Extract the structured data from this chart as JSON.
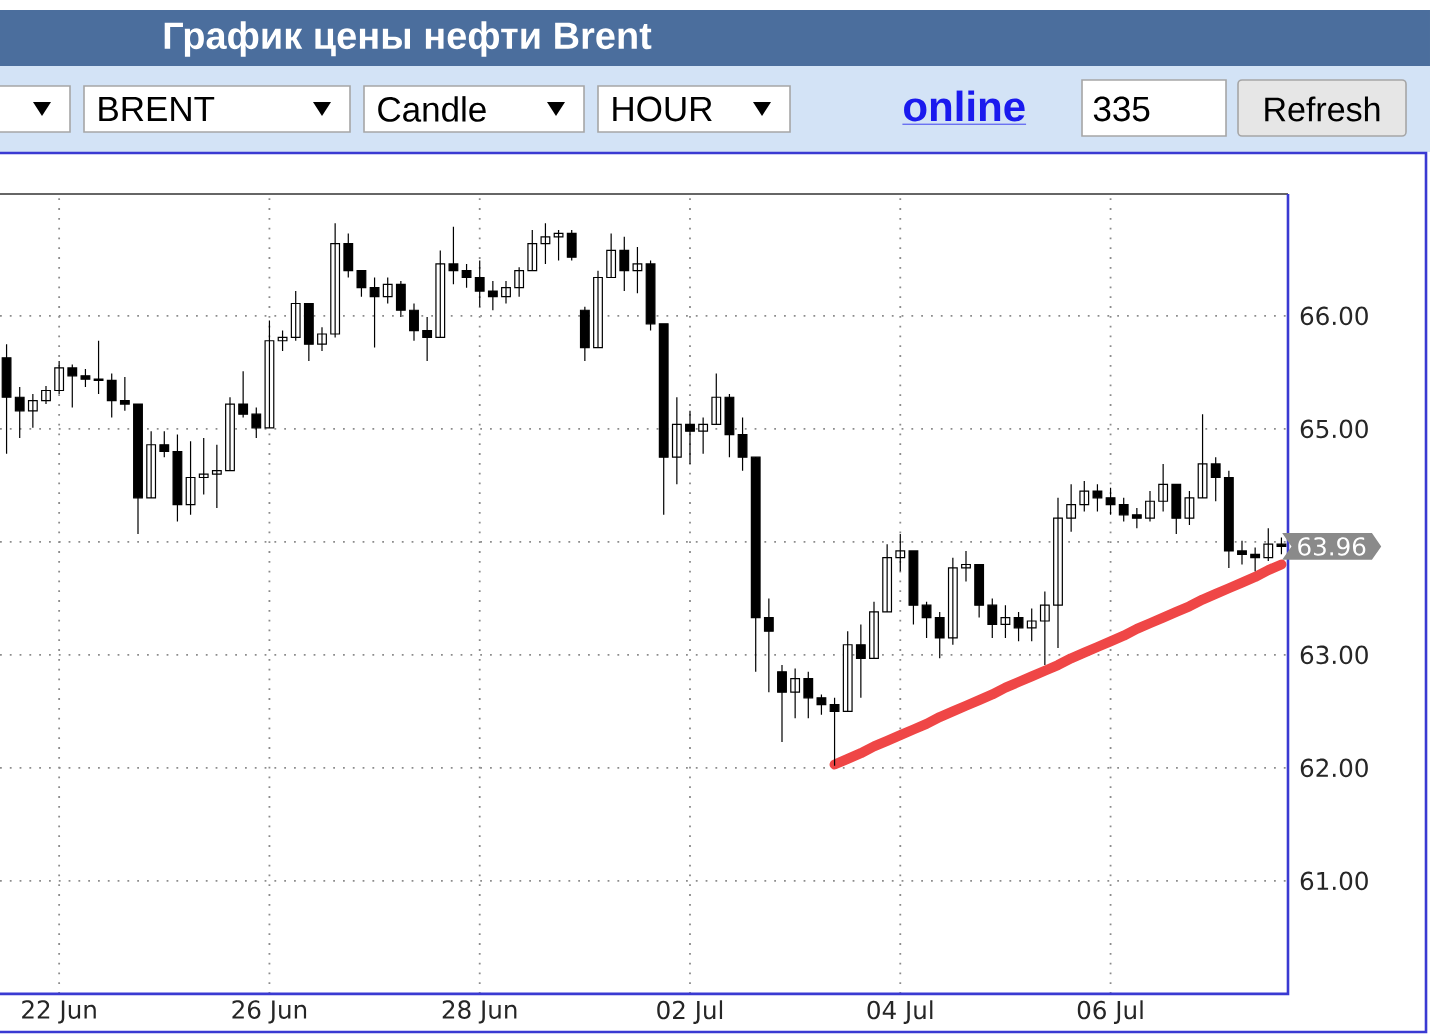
{
  "chart_data": {
    "type": "candlestick",
    "title": "График цены нефти Brent",
    "color": "#000000",
    "categories": [
      null,
      null,
      null,
      null,
      "22 Jun",
      null,
      null,
      null,
      null,
      null,
      null,
      null,
      null,
      null,
      null,
      null,
      null,
      null,
      null,
      null,
      "26 Jun",
      null,
      null,
      null,
      null,
      null,
      null,
      null,
      null,
      null,
      null,
      null,
      null,
      null,
      null,
      null,
      "28 Jun",
      null,
      null,
      null,
      null,
      null,
      null,
      null,
      null,
      null,
      null,
      null,
      null,
      null,
      null,
      null,
      "02 Jul",
      null,
      null,
      null,
      null,
      null,
      null,
      null,
      null,
      null,
      null,
      null,
      null,
      null,
      null,
      null,
      "04 Jul",
      null,
      null,
      null,
      null,
      null,
      null,
      null,
      null,
      null,
      null,
      null,
      null,
      null,
      null,
      null,
      "06 Jul",
      null,
      null,
      null,
      null,
      null,
      null,
      null,
      null,
      null,
      null,
      null,
      null,
      null
    ],
    "ohlc": [
      [
        65.63,
        65.75,
        64.78,
        65.28
      ],
      [
        65.28,
        65.37,
        64.92,
        65.16
      ],
      [
        65.16,
        65.31,
        65.01,
        65.25
      ],
      [
        65.25,
        65.38,
        65.22,
        65.34
      ],
      [
        65.34,
        65.6,
        65.31,
        65.54
      ],
      [
        65.54,
        65.57,
        65.19,
        65.47
      ],
      [
        65.47,
        65.53,
        65.37,
        65.44
      ],
      [
        65.44,
        65.78,
        65.31,
        65.43
      ],
      [
        65.43,
        65.49,
        65.1,
        65.25
      ],
      [
        65.25,
        65.46,
        65.16,
        65.22
      ],
      [
        65.22,
        65.22,
        64.07,
        64.39
      ],
      [
        64.39,
        64.98,
        64.39,
        64.86
      ],
      [
        64.86,
        64.98,
        64.75,
        64.8
      ],
      [
        64.8,
        64.95,
        64.18,
        64.33
      ],
      [
        64.33,
        64.89,
        64.24,
        64.57
      ],
      [
        64.57,
        64.92,
        64.42,
        64.6
      ],
      [
        64.6,
        64.86,
        64.3,
        64.63
      ],
      [
        64.63,
        65.28,
        64.63,
        65.22
      ],
      [
        65.22,
        65.51,
        65.1,
        65.13
      ],
      [
        65.13,
        65.19,
        64.92,
        65.01
      ],
      [
        65.01,
        65.96,
        65.01,
        65.78
      ],
      [
        65.78,
        65.87,
        65.69,
        65.81
      ],
      [
        65.81,
        66.22,
        65.78,
        66.11
      ],
      [
        66.11,
        66.11,
        65.6,
        65.75
      ],
      [
        65.75,
        65.9,
        65.69,
        65.84
      ],
      [
        65.84,
        66.82,
        65.81,
        66.64
      ],
      [
        66.64,
        66.73,
        66.34,
        66.4
      ],
      [
        66.4,
        66.4,
        66.17,
        66.25
      ],
      [
        66.25,
        66.34,
        65.72,
        66.17
      ],
      [
        66.17,
        66.34,
        66.11,
        66.28
      ],
      [
        66.28,
        66.31,
        65.99,
        66.05
      ],
      [
        66.05,
        66.11,
        65.78,
        65.87
      ],
      [
        65.87,
        65.99,
        65.6,
        65.81
      ],
      [
        65.81,
        66.58,
        65.81,
        66.46
      ],
      [
        66.46,
        66.79,
        66.28,
        66.4
      ],
      [
        66.4,
        66.46,
        66.25,
        66.34
      ],
      [
        66.34,
        66.49,
        66.08,
        66.22
      ],
      [
        66.22,
        66.31,
        66.05,
        66.17
      ],
      [
        66.17,
        66.31,
        66.11,
        66.25
      ],
      [
        66.25,
        66.43,
        66.17,
        66.4
      ],
      [
        66.4,
        66.76,
        66.4,
        66.64
      ],
      [
        66.64,
        66.82,
        66.46,
        66.7
      ],
      [
        66.7,
        66.76,
        66.49,
        66.73
      ],
      [
        66.73,
        66.76,
        66.49,
        66.52
      ],
      [
        66.05,
        66.08,
        65.6,
        65.72
      ],
      [
        65.72,
        66.4,
        65.72,
        66.34
      ],
      [
        66.34,
        66.73,
        66.34,
        66.58
      ],
      [
        66.58,
        66.7,
        66.22,
        66.4
      ],
      [
        66.4,
        66.61,
        66.2,
        66.46
      ],
      [
        66.46,
        66.49,
        65.87,
        65.93
      ],
      [
        65.93,
        65.93,
        64.24,
        64.75
      ],
      [
        64.75,
        65.28,
        64.51,
        65.04
      ],
      [
        65.04,
        65.16,
        64.69,
        64.98
      ],
      [
        64.98,
        65.1,
        64.78,
        65.04
      ],
      [
        65.04,
        65.49,
        65.04,
        65.28
      ],
      [
        65.28,
        65.31,
        64.75,
        64.95
      ],
      [
        64.95,
        65.1,
        64.63,
        64.75
      ],
      [
        64.75,
        64.75,
        62.85,
        63.33
      ],
      [
        63.33,
        63.5,
        62.67,
        63.21
      ],
      [
        62.85,
        62.91,
        62.23,
        62.67
      ],
      [
        62.67,
        62.88,
        62.44,
        62.79
      ],
      [
        62.79,
        62.85,
        62.44,
        62.62
      ],
      [
        62.62,
        62.65,
        62.47,
        62.56
      ],
      [
        62.56,
        62.62,
        62.02,
        62.5
      ],
      [
        62.5,
        63.21,
        62.5,
        63.09
      ],
      [
        63.09,
        63.27,
        62.62,
        62.97
      ],
      [
        62.97,
        63.47,
        62.97,
        63.38
      ],
      [
        63.38,
        63.98,
        63.38,
        63.86
      ],
      [
        63.86,
        64.07,
        63.74,
        63.92
      ],
      [
        63.92,
        63.92,
        63.27,
        63.44
      ],
      [
        63.44,
        63.47,
        63.15,
        63.33
      ],
      [
        63.33,
        63.38,
        62.97,
        63.15
      ],
      [
        63.15,
        63.86,
        63.09,
        63.77
      ],
      [
        63.77,
        63.92,
        63.65,
        63.8
      ],
      [
        63.8,
        63.8,
        63.33,
        63.44
      ],
      [
        63.44,
        63.5,
        63.15,
        63.27
      ],
      [
        63.27,
        63.44,
        63.15,
        63.33
      ],
      [
        63.33,
        63.38,
        63.12,
        63.24
      ],
      [
        63.24,
        63.41,
        63.12,
        63.3
      ],
      [
        63.3,
        63.56,
        62.91,
        63.44
      ],
      [
        63.44,
        64.39,
        63.06,
        64.21
      ],
      [
        64.21,
        64.51,
        64.09,
        64.33
      ],
      [
        64.33,
        64.54,
        64.27,
        64.45
      ],
      [
        64.45,
        64.51,
        64.27,
        64.39
      ],
      [
        64.39,
        64.48,
        64.24,
        64.33
      ],
      [
        64.33,
        64.39,
        64.18,
        64.24
      ],
      [
        64.24,
        64.3,
        64.12,
        64.21
      ],
      [
        64.21,
        64.45,
        64.18,
        64.36
      ],
      [
        64.36,
        64.69,
        64.27,
        64.51
      ],
      [
        64.51,
        64.51,
        64.07,
        64.21
      ],
      [
        64.21,
        64.45,
        64.15,
        64.39
      ],
      [
        64.39,
        65.13,
        64.39,
        64.69
      ],
      [
        64.69,
        64.75,
        64.36,
        64.57
      ],
      [
        64.57,
        64.63,
        63.77,
        63.92
      ],
      [
        63.92,
        64.01,
        63.8,
        63.89
      ],
      [
        63.89,
        63.95,
        63.74,
        63.86
      ],
      [
        63.86,
        64.12,
        63.83,
        63.98
      ],
      [
        63.98,
        64.04,
        63.89,
        63.96
      ]
    ],
    "series": [
      {
        "type": "line",
        "color": "#ef4646",
        "values": [
          null,
          null,
          null,
          null,
          null,
          null,
          null,
          null,
          null,
          null,
          null,
          null,
          null,
          null,
          null,
          null,
          null,
          null,
          null,
          null,
          null,
          null,
          null,
          null,
          null,
          null,
          null,
          null,
          null,
          null,
          null,
          null,
          null,
          null,
          null,
          null,
          null,
          null,
          null,
          null,
          null,
          null,
          null,
          null,
          null,
          null,
          null,
          null,
          null,
          null,
          null,
          null,
          null,
          null,
          null,
          null,
          null,
          null,
          null,
          null,
          null,
          null,
          null,
          62.03,
          62.08,
          62.13,
          62.19,
          62.24,
          62.29,
          62.34,
          62.39,
          62.45,
          62.5,
          62.55,
          62.6,
          62.65,
          62.71,
          62.76,
          62.81,
          62.86,
          62.91,
          62.97,
          63.02,
          63.07,
          63.12,
          63.17,
          63.23,
          63.28,
          63.33,
          63.38,
          63.43,
          63.49,
          63.54,
          63.59,
          63.64,
          63.69,
          63.75,
          63.8
        ]
      }
    ],
    "ylim": [
      60,
      67.08
    ],
    "yticks": [
      {
        "value": 61,
        "label": "61.00"
      },
      {
        "value": 62,
        "label": "62.00"
      },
      {
        "value": 63,
        "label": "63.00"
      },
      {
        "value": 64,
        "label": null
      },
      {
        "value": 65,
        "label": "65.00"
      },
      {
        "value": 66,
        "label": "66.00"
      }
    ],
    "grid": true,
    "annotations": [
      "BRENT",
      "Candle",
      "HOUR",
      "online",
      "335",
      "Refresh",
      "63.96"
    ]
  }
}
